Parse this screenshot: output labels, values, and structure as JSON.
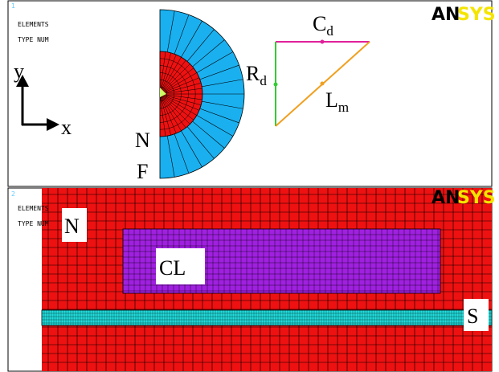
{
  "panel1": {
    "number": "1",
    "line1": "ELEMENTS",
    "line2": "TYPE NUM",
    "logo": {
      "first": "AN",
      "second": "SYS"
    },
    "axis_y": "y",
    "axis_x": "x",
    "label_n": "N",
    "label_f": "F",
    "rd": {
      "main": "R",
      "sub": "d"
    },
    "cd": {
      "main": "C",
      "sub": "d"
    },
    "lm": {
      "main": "L",
      "sub": "m"
    }
  },
  "panel2": {
    "number": "2",
    "line1": "ELEMENTS",
    "line2": "TYPE NUM",
    "logo": {
      "first": "AN",
      "second": "SYS"
    },
    "label_n": "N",
    "label_cl": "CL",
    "label_s": "S"
  }
}
